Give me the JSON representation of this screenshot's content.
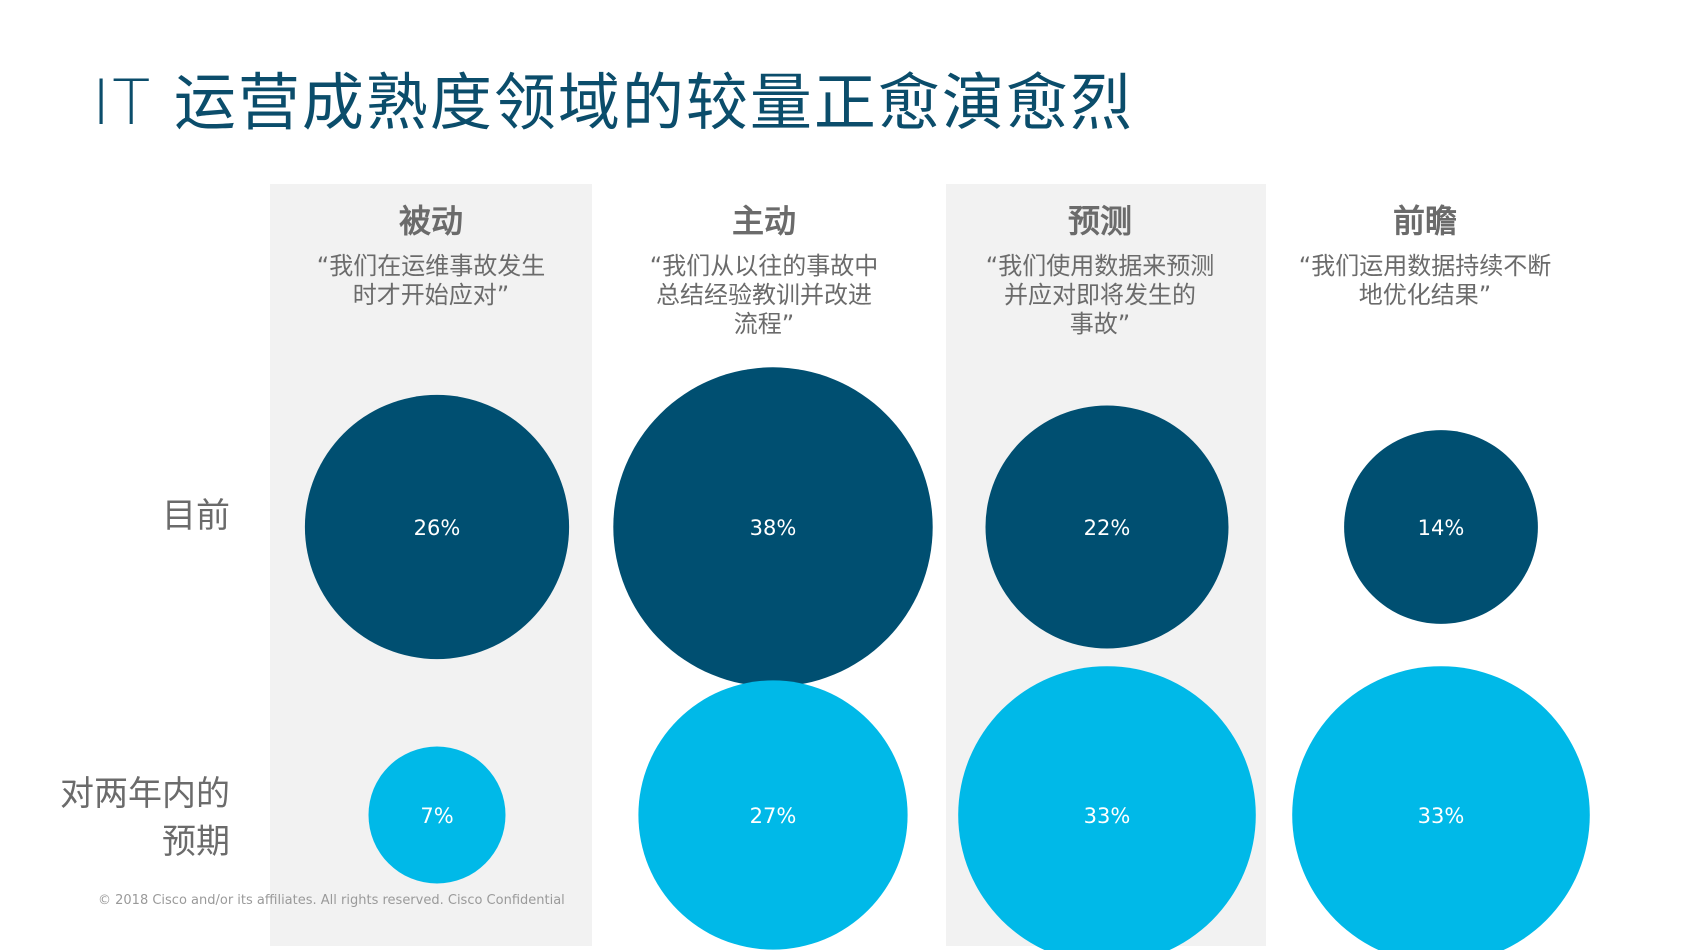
{
  "title": "IT 运营成熟度领域的较量正愈演愈烈",
  "footer": "© 2018  Cisco and/or its affiliates. All rights reserved.   Cisco Confidential",
  "colors": {
    "title": "#0b4d6b",
    "current": "#004f71",
    "expected": "#00b9e8",
    "shaded_column": "#f2f2f2",
    "text": "#6b6b6b"
  },
  "chart_data": {
    "type": "bubble",
    "title": "IT 运营成熟度领域的较量正愈演愈烈",
    "categories": [
      "被动",
      "主动",
      "预测",
      "前瞻"
    ],
    "category_quotes": [
      "“我们在运维事故发生\n时才开始应对”",
      "“我们从以往的事故中\n总结经验教训并改进\n流程”",
      "“我们使用数据来预测\n并应对即将发生的\n事故”",
      "“我们运用数据持续不断\n地优化结果”"
    ],
    "series": [
      {
        "name": "目前",
        "values": [
          26,
          38,
          22,
          14
        ],
        "labels": [
          "26%",
          "38%",
          "22%",
          "14%"
        ],
        "color": "#004f71"
      },
      {
        "name": "对两年内的\n预期",
        "values": [
          7,
          27,
          33,
          33
        ],
        "labels": [
          "7%",
          "27%",
          "33%",
          "33%"
        ],
        "color": "#00b9e8"
      }
    ],
    "shaded_columns": [
      0,
      2
    ],
    "grid": false,
    "legend": "none"
  }
}
